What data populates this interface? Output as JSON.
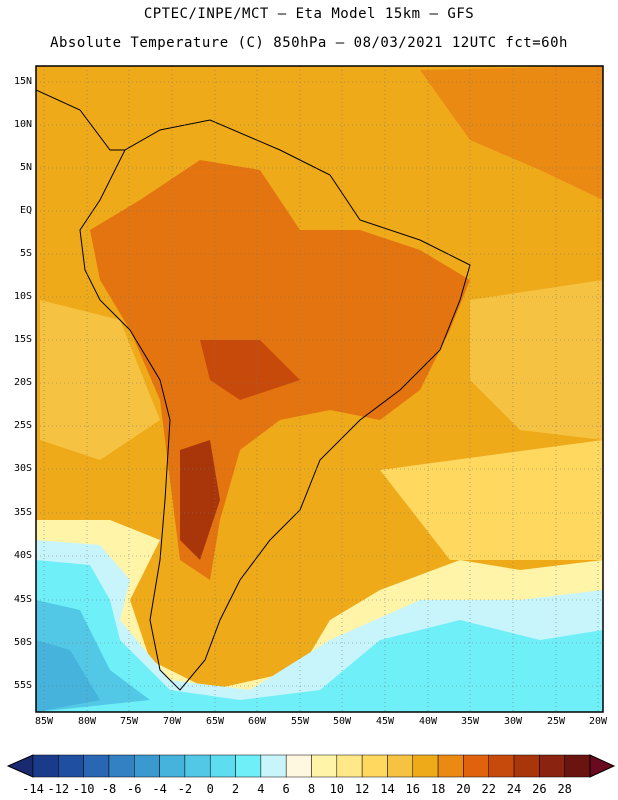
{
  "header": {
    "title_line1": "CPTEC/INPE/MCT –  Eta Model 15km – GFS",
    "title_line2": "Absolute Temperature (C) 850hPa – 08/03/2021 12UTC fct=60h"
  },
  "axes": {
    "lat_labels": [
      "15N",
      "10N",
      "5N",
      "EQ",
      "5S",
      "10S",
      "15S",
      "20S",
      "25S",
      "30S",
      "35S",
      "40S",
      "45S",
      "50S",
      "55S"
    ],
    "lon_labels": [
      "85W",
      "80W",
      "75W",
      "70W",
      "65W",
      "60W",
      "55W",
      "50W",
      "45W",
      "40W",
      "35W",
      "30W",
      "25W",
      "20W"
    ]
  },
  "colorbar": {
    "labels": [
      "-14",
      "-12",
      "-10",
      "-8",
      "-6",
      "-4",
      "-2",
      "0",
      "2",
      "4",
      "6",
      "8",
      "10",
      "12",
      "14",
      "16",
      "18",
      "20",
      "22",
      "24",
      "26",
      "28"
    ],
    "colors": [
      "#1a3a8a",
      "#1f4fa0",
      "#2966b3",
      "#3380c2",
      "#3a9ad0",
      "#45b3dc",
      "#52c8e6",
      "#5edcf0",
      "#6ff0f8",
      "#c8f4fb",
      "#fff8e0",
      "#fff4a8",
      "#ffe888",
      "#ffd860",
      "#f5c242",
      "#efaa1a",
      "#ea8a12",
      "#e0620c",
      "#c84a0a",
      "#a8360a",
      "#8a2410",
      "#6a1410"
    ]
  },
  "map": {
    "ocean_color": "#efaa1a",
    "cold_color": "#6ff0f8"
  }
}
